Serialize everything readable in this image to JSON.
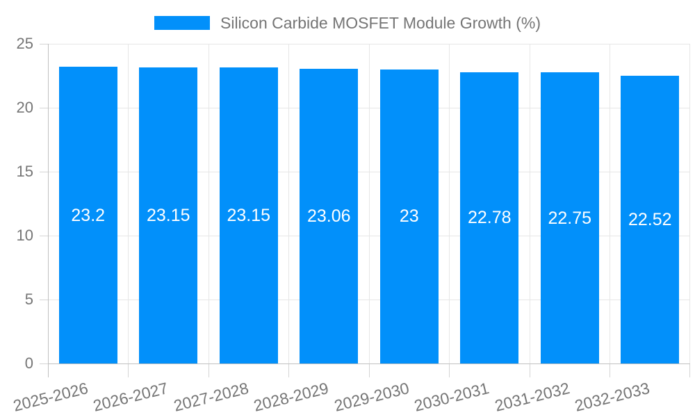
{
  "chart_data": {
    "type": "bar",
    "title": "Silicon Carbide MOSFET Module Growth (%)",
    "categories": [
      "2025-2026",
      "2026-2027",
      "2027-2028",
      "2028-2029",
      "2029-2030",
      "2030-2031",
      "2031-2032",
      "2032-2033"
    ],
    "values": [
      23.2,
      23.15,
      23.15,
      23.06,
      23,
      22.78,
      22.75,
      22.52
    ],
    "series": [
      {
        "name": "Silicon Carbide MOSFET Module Growth (%)",
        "values": [
          23.2,
          23.15,
          23.15,
          23.06,
          23,
          22.78,
          22.75,
          22.52
        ]
      }
    ],
    "xlabel": "",
    "ylabel": "",
    "ylim": [
      0,
      25
    ],
    "yticks": [
      0,
      5,
      10,
      15,
      20,
      25
    ],
    "grid": true,
    "legend_position": "top"
  },
  "colors": {
    "bar": "#0290fa",
    "grid": "#e6e6e6",
    "tick": "#d4d4d4",
    "axis": "#c0c0c0",
    "text": "#757575",
    "value_label": "#ffffff",
    "background": "#ffffff"
  }
}
